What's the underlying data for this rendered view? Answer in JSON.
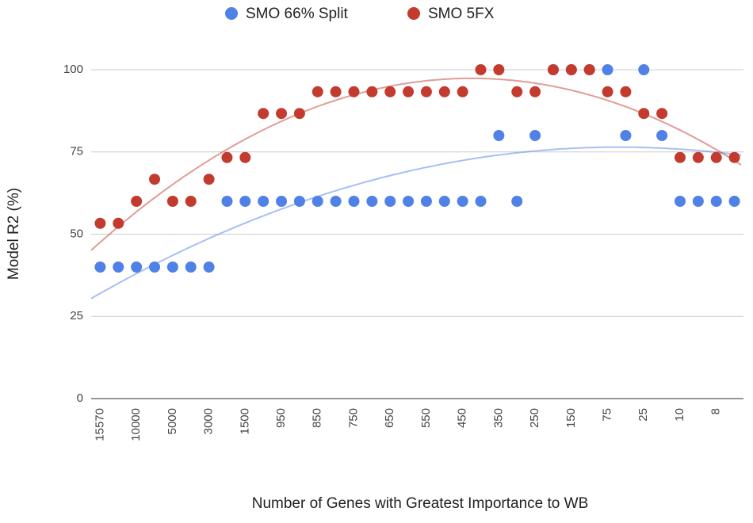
{
  "chart_data": {
    "type": "scatter",
    "x_label": "Number of Genes with Greatest Importance to WB",
    "y_label": "Model R2 (%)",
    "categories": [
      "15570",
      null,
      "10000",
      null,
      "5000",
      null,
      "3000",
      null,
      "1500",
      null,
      "950",
      null,
      "850",
      null,
      "750",
      null,
      "650",
      null,
      "550",
      null,
      "450",
      null,
      "350",
      null,
      "250",
      null,
      "150",
      null,
      "75",
      null,
      "25",
      null,
      "10",
      null,
      "8",
      null
    ],
    "series": [
      {
        "name": "SMO 66% Split",
        "color": "#4f81e6",
        "values": [
          40,
          40,
          40,
          40,
          40,
          40,
          40,
          60,
          60,
          60,
          60,
          60,
          60,
          60,
          60,
          60,
          60,
          60,
          60,
          60,
          60,
          60,
          80,
          60,
          80,
          100,
          100,
          100,
          100,
          80,
          100,
          80,
          60,
          60,
          60,
          60
        ]
      },
      {
        "name": "SMO 5FX",
        "color": "#c23b2e",
        "values": [
          53.3,
          53.3,
          60,
          66.7,
          60,
          60,
          66.7,
          73.3,
          73.3,
          86.7,
          86.7,
          86.7,
          93.3,
          93.3,
          93.3,
          93.3,
          93.3,
          93.3,
          93.3,
          93.3,
          93.3,
          100,
          100,
          93.3,
          93.3,
          100,
          100,
          100,
          93.3,
          93.3,
          86.7,
          86.7,
          73.3,
          73.3,
          73.3,
          73.3
        ]
      }
    ],
    "ylim": [
      0,
      100
    ],
    "yticks": [
      0,
      25,
      50,
      75,
      100
    ],
    "grid": true,
    "legend": "top",
    "trendline": "polynomial"
  }
}
